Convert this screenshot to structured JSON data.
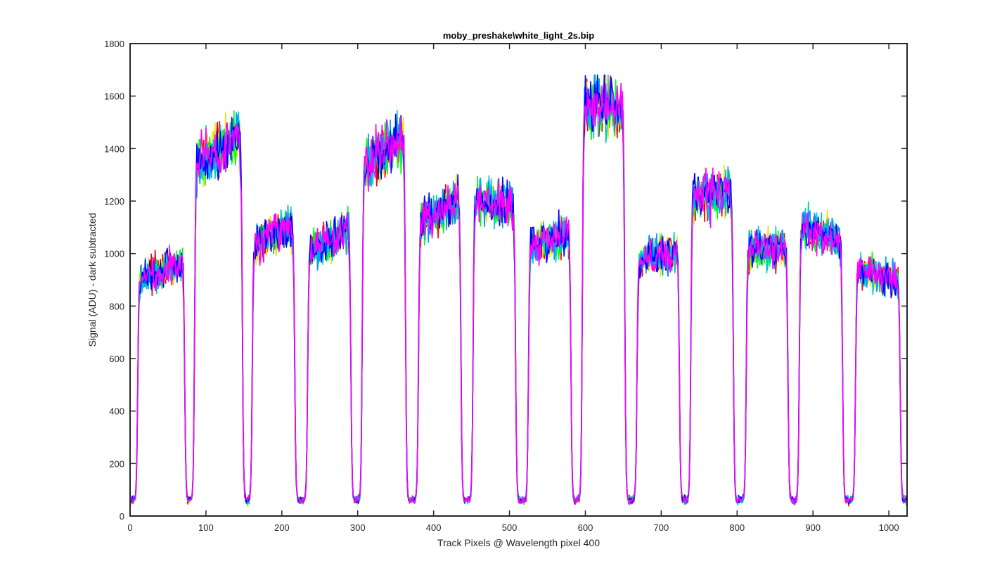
{
  "chart_data": {
    "type": "line",
    "title": "moby_preshake\\white_light_2s.bip",
    "xlabel": "Track Pixels @ Wavelength pixel 400",
    "ylabel": "Signal (ADU) - dark subtracted",
    "xlim": [
      0,
      1024
    ],
    "ylim": [
      0,
      1800
    ],
    "xticks": [
      0,
      100,
      200,
      300,
      400,
      500,
      600,
      700,
      800,
      900,
      1000
    ],
    "yticks": [
      0,
      200,
      400,
      600,
      800,
      1000,
      1200,
      1400,
      1600,
      1800
    ],
    "grid": false,
    "legend": "none",
    "tracks": [
      {
        "x0": 10,
        "x1": 72,
        "start": 900,
        "end": 970
      },
      {
        "x0": 85,
        "x1": 148,
        "start": 1340,
        "end": 1440
      },
      {
        "x0": 161,
        "x1": 217,
        "start": 1030,
        "end": 1110
      },
      {
        "x0": 234,
        "x1": 291,
        "start": 1000,
        "end": 1100
      },
      {
        "x0": 306,
        "x1": 363,
        "start": 1330,
        "end": 1450
      },
      {
        "x0": 380,
        "x1": 436,
        "start": 1110,
        "end": 1210
      },
      {
        "x0": 452,
        "x1": 508,
        "start": 1210,
        "end": 1170
      },
      {
        "x0": 525,
        "x1": 581,
        "start": 1020,
        "end": 1080
      },
      {
        "x0": 596,
        "x1": 652,
        "start": 1570,
        "end": 1560
      },
      {
        "x0": 668,
        "x1": 724,
        "start": 980,
        "end": 1000
      },
      {
        "x0": 739,
        "x1": 795,
        "start": 1210,
        "end": 1240
      },
      {
        "x0": 812,
        "x1": 867,
        "start": 1020,
        "end": 1020
      },
      {
        "x0": 882,
        "x1": 939,
        "start": 1110,
        "end": 1040
      },
      {
        "x0": 956,
        "x1": 1015,
        "start": 940,
        "end": 900
      }
    ],
    "series": [
      {
        "color": "#ff0000"
      },
      {
        "color": "#e6e600"
      },
      {
        "color": "#00ff00"
      },
      {
        "color": "#00cccc"
      },
      {
        "color": "#0099ff"
      },
      {
        "color": "#0000ff"
      },
      {
        "color": "#ff00ff"
      }
    ]
  }
}
